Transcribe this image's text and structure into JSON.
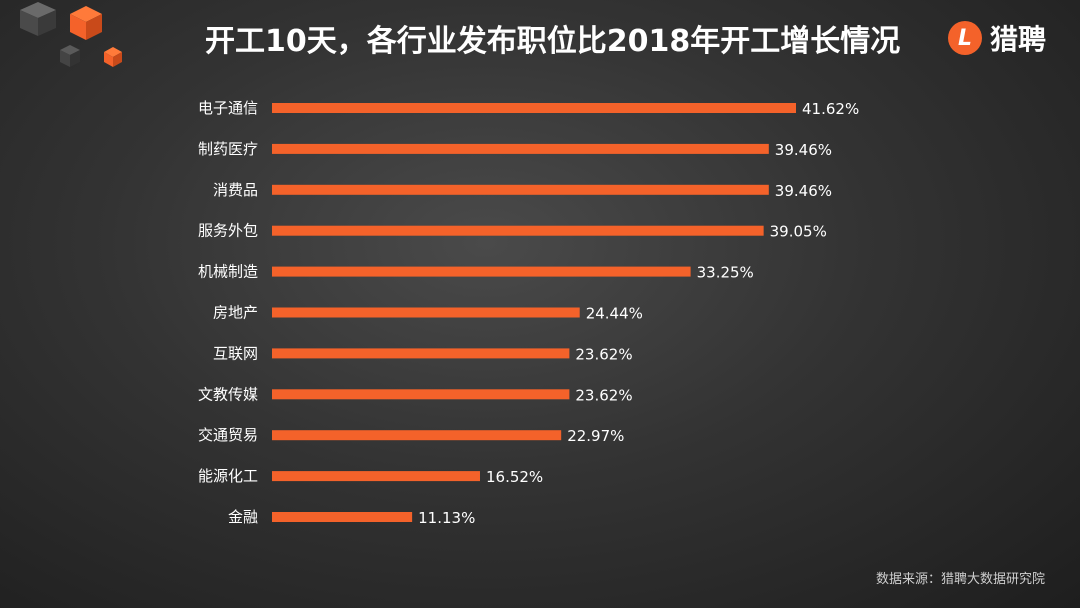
{
  "title": "开工10天，各行业发布职位比2018年开工增长情况",
  "logo": {
    "mark": "L",
    "text": "猎聘"
  },
  "source": "数据来源：猎聘大数据研究院",
  "colors": {
    "bar": "#f4622a",
    "accent": "#f4622a"
  },
  "chart_data": {
    "type": "bar",
    "orientation": "horizontal",
    "title": "开工10天，各行业发布职位比2018年开工增长情况",
    "categories": [
      "电子通信",
      "制药医疗",
      "消费品",
      "服务外包",
      "机械制造",
      "房地产",
      "互联网",
      "文教传媒",
      "交通贸易",
      "能源化工",
      "金融"
    ],
    "values": [
      41.62,
      39.46,
      39.46,
      39.05,
      33.25,
      24.44,
      23.62,
      23.62,
      22.97,
      16.52,
      11.13
    ],
    "value_labels": [
      "41.62%",
      "39.46%",
      "39.46%",
      "39.05%",
      "33.25%",
      "24.44%",
      "23.62%",
      "23.62%",
      "22.97%",
      "16.52%",
      "11.13%"
    ],
    "unit": "%",
    "xlabel": "",
    "ylabel": "",
    "xlim": [
      0,
      41.62
    ],
    "grid": false,
    "legend": "none"
  }
}
